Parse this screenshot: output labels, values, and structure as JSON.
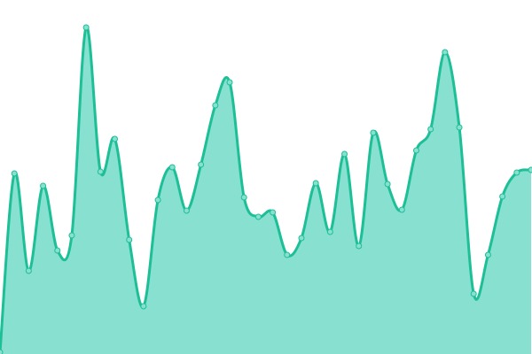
{
  "chart_data": {
    "type": "area",
    "title": "",
    "xlabel": "",
    "ylabel": "",
    "x": [
      0,
      1,
      2,
      3,
      4,
      5,
      6,
      7,
      8,
      9,
      10,
      11,
      12,
      13,
      14,
      15,
      16,
      17,
      18,
      19,
      20,
      21,
      22,
      23,
      24,
      25,
      26,
      27,
      28,
      29,
      30,
      31,
      32,
      33,
      34,
      35,
      36,
      37
    ],
    "series": [
      {
        "values": [
          2,
          204,
          94,
          190,
          117,
          134,
          369,
          206,
          243,
          129,
          54,
          174,
          211,
          162,
          214,
          281,
          307,
          177,
          155,
          160,
          112,
          131,
          193,
          138,
          226,
          122,
          250,
          192,
          163,
          230,
          254,
          341,
          256,
          68,
          112,
          178,
          205,
          208
        ]
      }
    ],
    "ylim": [
      0,
      400
    ],
    "xlim": [
      0,
      37
    ],
    "grid": false,
    "axes_visible": false,
    "curve": "smooth",
    "colors": {
      "line": "#1dbf97",
      "fill": "#88e0d0",
      "marker_fill": "#88e0d0",
      "marker_stroke": "#1dbf97"
    }
  }
}
